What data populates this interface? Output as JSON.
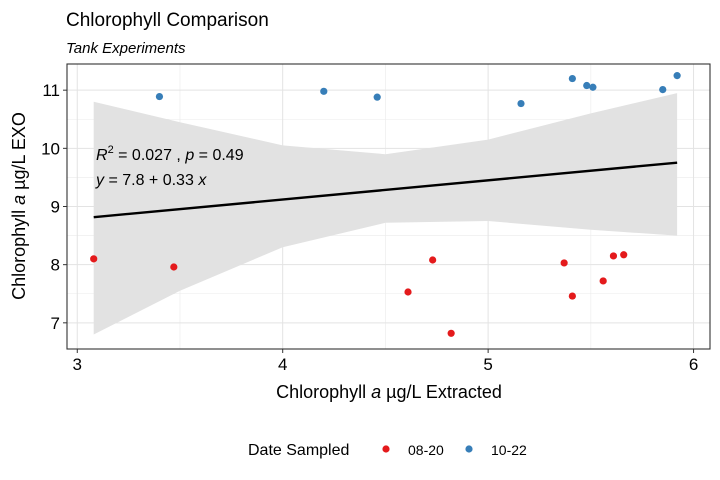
{
  "chart_data": {
    "type": "scatter",
    "title": "Chlorophyll Comparison",
    "subtitle": "Tank Experiments",
    "xlabel": {
      "pre": "Chlorophyll ",
      "italic": "a",
      "post": " µg/L Extracted"
    },
    "ylabel": {
      "pre": "Chlorophyll ",
      "italic": "a",
      "post": " µg/L EXO"
    },
    "xlim": [
      2.95,
      6.08
    ],
    "ylim": [
      6.55,
      11.45
    ],
    "x_ticks": [
      3,
      4,
      5,
      6
    ],
    "y_ticks": [
      7,
      8,
      9,
      10,
      11
    ],
    "grid": true,
    "legend": {
      "title": "Date Sampled",
      "position": "bottom",
      "entries": [
        {
          "label": "08-20",
          "color": "#E41A1C"
        },
        {
          "label": "10-22",
          "color": "#377EB8"
        }
      ]
    },
    "series": [
      {
        "name": "08-20",
        "color": "#E41A1C",
        "points": [
          [
            3.08,
            8.1
          ],
          [
            3.47,
            7.96
          ],
          [
            4.61,
            7.53
          ],
          [
            4.73,
            8.08
          ],
          [
            4.82,
            6.82
          ],
          [
            5.37,
            8.03
          ],
          [
            5.41,
            7.46
          ],
          [
            5.56,
            7.72
          ],
          [
            5.61,
            8.15
          ],
          [
            5.66,
            8.17
          ]
        ]
      },
      {
        "name": "10-22",
        "color": "#377EB8",
        "points": [
          [
            3.4,
            10.89
          ],
          [
            4.2,
            10.98
          ],
          [
            4.46,
            10.88
          ],
          [
            5.16,
            10.77
          ],
          [
            5.41,
            11.2
          ],
          [
            5.48,
            11.08
          ],
          [
            5.51,
            11.05
          ],
          [
            5.85,
            11.01
          ],
          [
            5.92,
            11.25
          ]
        ]
      }
    ],
    "regression": {
      "intercept": 7.8,
      "slope": 0.33,
      "x_range": [
        3.08,
        5.92
      ],
      "ci_lower": [
        [
          3.08,
          6.8
        ],
        [
          3.5,
          7.55
        ],
        [
          4.0,
          8.3
        ],
        [
          4.5,
          8.72
        ],
        [
          5.0,
          8.75
        ],
        [
          5.5,
          8.6
        ],
        [
          5.92,
          8.5
        ]
      ],
      "ci_upper": [
        [
          3.08,
          10.8
        ],
        [
          3.5,
          10.45
        ],
        [
          4.0,
          10.05
        ],
        [
          4.5,
          9.9
        ],
        [
          5.0,
          10.15
        ],
        [
          5.5,
          10.6
        ],
        [
          5.92,
          10.95
        ]
      ],
      "r2_value": "0.027",
      "p_value": "0.49",
      "equation_rhs": "7.8 + 0.33"
    }
  }
}
